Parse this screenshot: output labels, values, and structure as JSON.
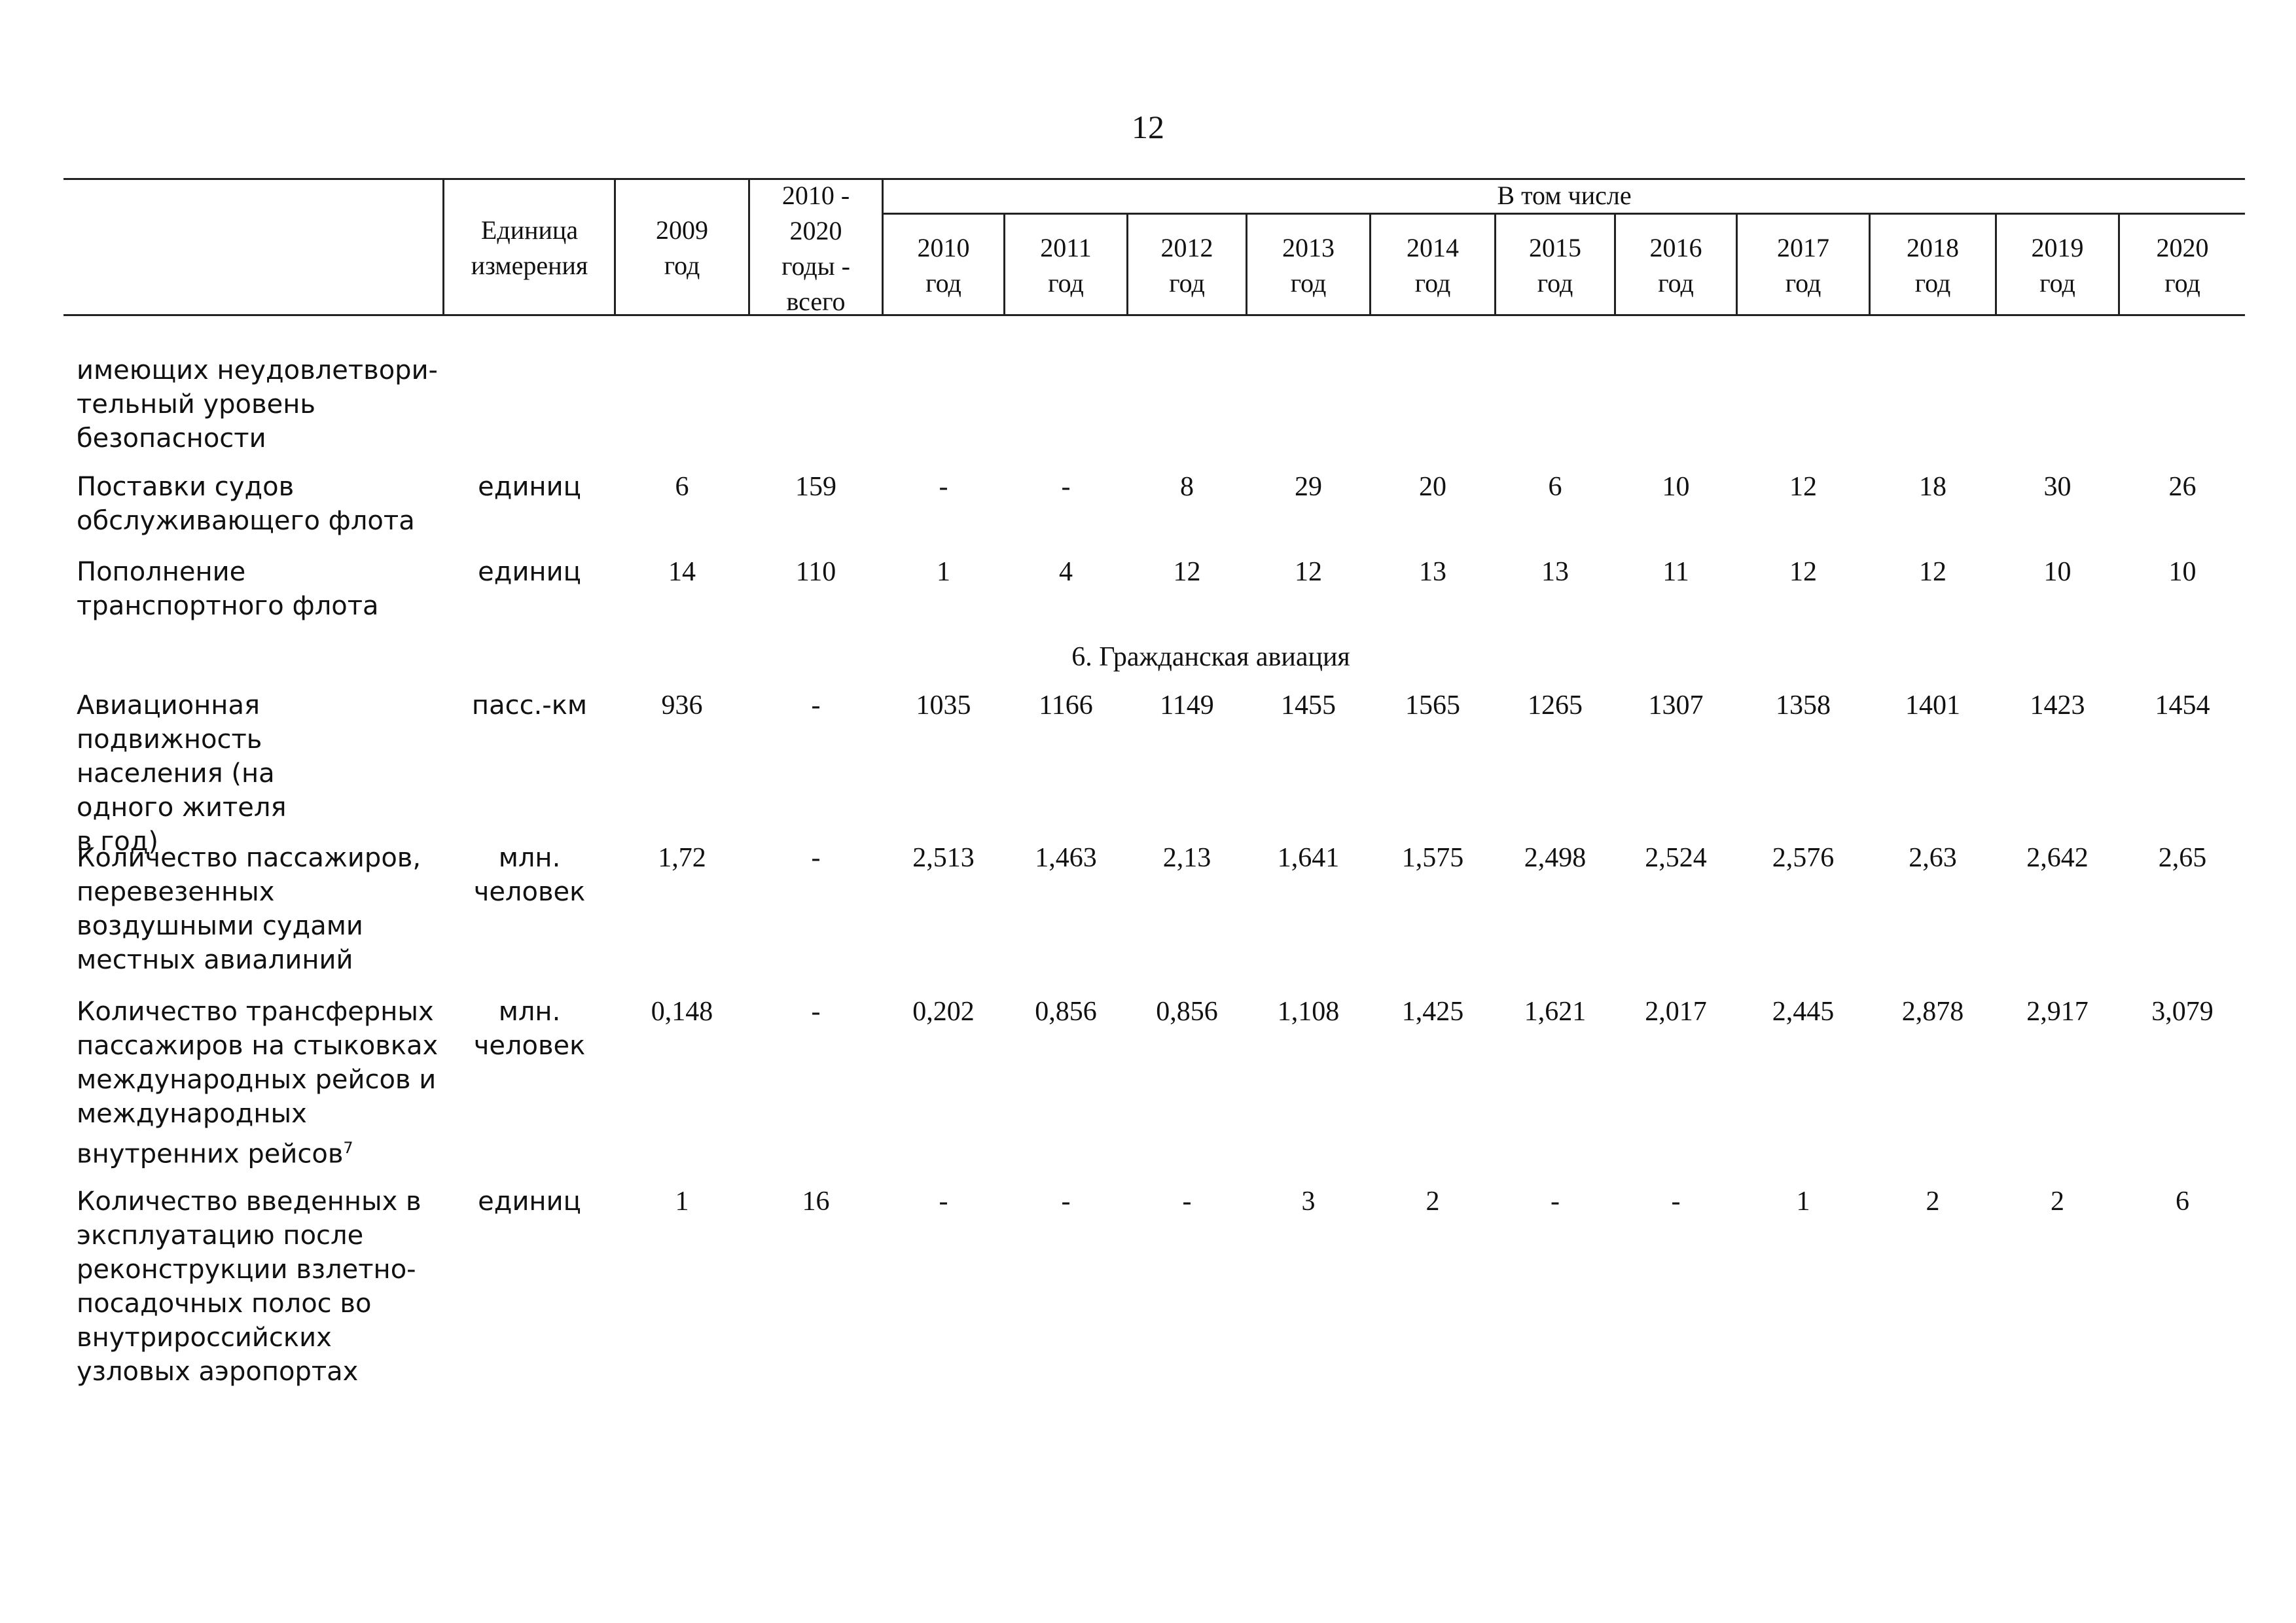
{
  "page_number": "12",
  "header": {
    "unit_label": [
      "Единица",
      "измерения"
    ],
    "y2009": [
      "2009",
      "год"
    ],
    "total": [
      "2010 -",
      "2020",
      "годы -",
      "всего"
    ],
    "including": "В том числе",
    "years": [
      {
        "year": "2010",
        "suffix": "год"
      },
      {
        "year": "2011",
        "suffix": "год"
      },
      {
        "year": "2012",
        "suffix": "год"
      },
      {
        "year": "2013",
        "suffix": "год"
      },
      {
        "year": "2014",
        "suffix": "год"
      },
      {
        "year": "2015",
        "suffix": "год"
      },
      {
        "year": "2016",
        "suffix": "год"
      },
      {
        "year": "2017",
        "suffix": "год"
      },
      {
        "year": "2018",
        "suffix": "год"
      },
      {
        "year": "2019",
        "suffix": "год"
      },
      {
        "year": "2020",
        "suffix": "год"
      }
    ]
  },
  "continued_label": [
    "имеющих неудовлетвори-",
    "тельный уровень",
    "безопасности"
  ],
  "rows_a": [
    {
      "label": [
        "Поставки судов",
        "обслуживающего флота"
      ],
      "unit": [
        "единиц"
      ],
      "v2009": "6",
      "total": "159",
      "values": [
        "-",
        "-",
        "8",
        "29",
        "20",
        "6",
        "10",
        "12",
        "18",
        "30",
        "26"
      ]
    },
    {
      "label": [
        "Пополнение",
        "транспортного флота"
      ],
      "unit": [
        "единиц"
      ],
      "v2009": "14",
      "total": "110",
      "values": [
        "1",
        "4",
        "12",
        "12",
        "13",
        "13",
        "11",
        "12",
        "12",
        "10",
        "10"
      ]
    }
  ],
  "section_title": "6. Гражданская авиация",
  "rows_b": [
    {
      "label": [
        "Авиационная подвижность",
        "населения (на",
        "одного жителя",
        "в год)"
      ],
      "unit": [
        "пасс.-км"
      ],
      "v2009": "936",
      "total": "-",
      "values": [
        "1035",
        "1166",
        "1149",
        "1455",
        "1565",
        "1265",
        "1307",
        "1358",
        "1401",
        "1423",
        "1454"
      ]
    },
    {
      "label": [
        "Количество пассажиров,",
        "перевезенных",
        "воздушными судами",
        "местных авиалиний"
      ],
      "unit": [
        "млн.",
        "человек"
      ],
      "v2009": "1,72",
      "total": "-",
      "values": [
        "2,513",
        "1,463",
        "2,13",
        "1,641",
        "1,575",
        "2,498",
        "2,524",
        "2,576",
        "2,63",
        "2,642",
        "2,65"
      ]
    },
    {
      "label": [
        "Количество трансферных",
        "пассажиров на стыковках",
        "международных рейсов и",
        "международных",
        "внутренних рейсов"
      ],
      "footnote": "7",
      "unit": [
        "млн.",
        "человек"
      ],
      "v2009": "0,148",
      "total": "-",
      "values": [
        "0,202",
        "0,856",
        "0,856",
        "1,108",
        "1,425",
        "1,621",
        "2,017",
        "2,445",
        "2,878",
        "2,917",
        "3,079"
      ]
    },
    {
      "label": [
        "Количество введенных в",
        "эксплуатацию после",
        "реконструкции взлетно-",
        "посадочных полос во",
        "внутрироссийских",
        "узловых аэропортах"
      ],
      "unit": [
        "единиц"
      ],
      "v2009": "1",
      "total": "16",
      "values": [
        "-",
        "-",
        "-",
        "3",
        "2",
        "-",
        "-",
        "1",
        "2",
        "2",
        "6"
      ]
    }
  ]
}
